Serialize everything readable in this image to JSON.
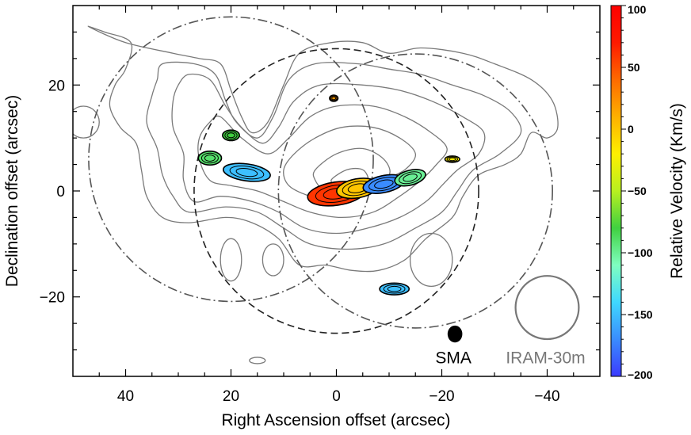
{
  "chart_data": {
    "type": "contour_map",
    "xlabel": "Right Ascension offset (arcsec)",
    "ylabel": "Declination offset (arcsec)",
    "xlim": [
      50,
      -50
    ],
    "ylim": [
      -35,
      35
    ],
    "x_ticks": [
      40,
      20,
      0,
      -20,
      -40
    ],
    "x_tick_labels": [
      "40",
      "20",
      "0",
      "−20",
      "−40"
    ],
    "y_ticks": [
      20,
      0,
      -20
    ],
    "y_tick_labels": [
      "20",
      "0",
      "−20"
    ],
    "colorbar": {
      "label": "Relative Velocity (Km/s)",
      "range": [
        -200,
        100
      ],
      "ticks": [
        100,
        50,
        0,
        -50,
        -100,
        -150,
        -200
      ],
      "tick_labels": [
        "100",
        "50",
        "0",
        "−50",
        "−100",
        "−150",
        "−200"
      ],
      "colormap": [
        "#3b3bff",
        "#3a8cff",
        "#3fd8ff",
        "#7fffc0",
        "#40d040",
        "#b8f020",
        "#fff000",
        "#ffb000",
        "#ff6a00",
        "#ff1a00",
        "#ff0000"
      ]
    },
    "pointings": [
      {
        "style": "dashdot",
        "center": [
          20,
          6
        ],
        "radius": 27
      },
      {
        "style": "dashed",
        "center": [
          0,
          0
        ],
        "radius": 27
      },
      {
        "style": "dashdot",
        "center": [
          -15,
          0
        ],
        "radius": 26
      }
    ],
    "smoothed_contours": [
      {
        "level": 1,
        "points": [
          [
            47,
            31
          ],
          [
            40,
            28
          ],
          [
            31,
            26
          ],
          [
            26,
            25
          ],
          [
            22,
            24
          ],
          [
            20,
            19
          ],
          [
            18,
            14
          ],
          [
            16,
            11
          ],
          [
            13,
            13
          ],
          [
            10,
            20
          ],
          [
            7,
            26
          ],
          [
            1,
            28
          ],
          [
            -5,
            28
          ],
          [
            -10,
            26
          ],
          [
            -16,
            27
          ],
          [
            -24,
            26
          ],
          [
            -30,
            24
          ],
          [
            -37,
            21
          ],
          [
            -41,
            17
          ],
          [
            -42,
            12
          ],
          [
            -40,
            10
          ],
          [
            -37,
            11
          ],
          [
            -35,
            7
          ],
          [
            -32,
            5
          ],
          [
            -27,
            3
          ],
          [
            -24,
            -1
          ],
          [
            -22,
            -5
          ],
          [
            -17,
            -9
          ],
          [
            -13,
            -13
          ],
          [
            -8,
            -15
          ],
          [
            -3,
            -15
          ],
          [
            2,
            -14
          ],
          [
            7,
            -14
          ],
          [
            11,
            -9
          ],
          [
            16,
            -6
          ],
          [
            21,
            -5
          ],
          [
            28,
            -6
          ],
          [
            33,
            -5
          ],
          [
            36,
            -1
          ],
          [
            37,
            4
          ],
          [
            38,
            9
          ],
          [
            41,
            12
          ],
          [
            43,
            16
          ],
          [
            42,
            20
          ],
          [
            40,
            23
          ],
          [
            39,
            28
          ],
          [
            44,
            30
          ]
        ]
      },
      {
        "level": 2,
        "points": [
          [
            33,
            24
          ],
          [
            27,
            24
          ],
          [
            23,
            22
          ],
          [
            21,
            17
          ],
          [
            19,
            13
          ],
          [
            15,
            10
          ],
          [
            12,
            14
          ],
          [
            9,
            21
          ],
          [
            4,
            24
          ],
          [
            -4,
            24
          ],
          [
            -10,
            23
          ],
          [
            -16,
            22
          ],
          [
            -22,
            20
          ],
          [
            -28,
            18
          ],
          [
            -33,
            15
          ],
          [
            -35,
            11
          ],
          [
            -31,
            7
          ],
          [
            -26,
            4
          ],
          [
            -23,
            0
          ],
          [
            -20,
            -4
          ],
          [
            -15,
            -7
          ],
          [
            -9,
            -10
          ],
          [
            -2,
            -11
          ],
          [
            5,
            -10
          ],
          [
            10,
            -7
          ],
          [
            15,
            -4
          ],
          [
            21,
            -3
          ],
          [
            28,
            -4
          ],
          [
            31,
            -1
          ],
          [
            33,
            3
          ],
          [
            34,
            8
          ],
          [
            36,
            13
          ],
          [
            35,
            18
          ],
          [
            34,
            21
          ]
        ]
      },
      {
        "level": 3,
        "points": [
          [
            28,
            22
          ],
          [
            24,
            21
          ],
          [
            21,
            16
          ],
          [
            18,
            12
          ],
          [
            14,
            9
          ],
          [
            11,
            12
          ],
          [
            8,
            17
          ],
          [
            3,
            20
          ],
          [
            -5,
            20
          ],
          [
            -12,
            19
          ],
          [
            -18,
            17
          ],
          [
            -24,
            14
          ],
          [
            -28,
            11
          ],
          [
            -27,
            7
          ],
          [
            -23,
            4
          ],
          [
            -20,
            1
          ],
          [
            -17,
            -2
          ],
          [
            -12,
            -5
          ],
          [
            -6,
            -7
          ],
          [
            0,
            -8
          ],
          [
            6,
            -7
          ],
          [
            11,
            -4
          ],
          [
            16,
            -2
          ],
          [
            22,
            -1
          ],
          [
            27,
            -2
          ],
          [
            29,
            2
          ],
          [
            29,
            7
          ],
          [
            31,
            12
          ],
          [
            31,
            17
          ],
          [
            30,
            20
          ]
        ]
      },
      {
        "level": 4,
        "points": [
          [
            22,
            14
          ],
          [
            18,
            10
          ],
          [
            13,
            7
          ],
          [
            9,
            10
          ],
          [
            5,
            14
          ],
          [
            0,
            16
          ],
          [
            -7,
            16
          ],
          [
            -13,
            14
          ],
          [
            -18,
            11
          ],
          [
            -21,
            8
          ],
          [
            -19,
            5
          ],
          [
            -16,
            2
          ],
          [
            -12,
            -1
          ],
          [
            -7,
            -4
          ],
          [
            -1,
            -5
          ],
          [
            5,
            -4
          ],
          [
            10,
            -2
          ],
          [
            15,
            0
          ],
          [
            20,
            1
          ],
          [
            24,
            2
          ],
          [
            26,
            6
          ],
          [
            26,
            10
          ],
          [
            24,
            13
          ]
        ]
      },
      {
        "level": 5,
        "points": [
          [
            8,
            7
          ],
          [
            4,
            10
          ],
          [
            -1,
            12
          ],
          [
            -7,
            12
          ],
          [
            -12,
            10
          ],
          [
            -15,
            7
          ],
          [
            -13,
            4
          ],
          [
            -9,
            2
          ],
          [
            -5,
            -1
          ],
          [
            0,
            -2
          ],
          [
            5,
            -1
          ],
          [
            9,
            1
          ],
          [
            10,
            4
          ]
        ]
      },
      {
        "level": 6,
        "points": [
          [
            4,
            4
          ],
          [
            0,
            7
          ],
          [
            -5,
            8
          ],
          [
            -9,
            6
          ],
          [
            -10,
            3
          ],
          [
            -6,
            1
          ],
          [
            -2,
            0
          ],
          [
            2,
            0
          ],
          [
            4,
            2
          ]
        ]
      },
      {
        "level": 7,
        "points": [
          [
            1,
            2
          ],
          [
            -2,
            4
          ],
          [
            -5,
            4
          ],
          [
            -6,
            2
          ],
          [
            -4,
            1
          ],
          [
            -1,
            1
          ]
        ]
      }
    ],
    "contour_islands": [
      {
        "center": [
          -18,
          -13
        ],
        "rx": 4,
        "ry": 5
      },
      {
        "center": [
          20,
          -13
        ],
        "rx": 2,
        "ry": 4
      },
      {
        "center": [
          12,
          -13
        ],
        "rx": 2,
        "ry": 3
      },
      {
        "center": [
          48,
          13
        ],
        "rx": 3,
        "ry": 3
      },
      {
        "center": [
          15,
          -32
        ],
        "rx": 1.5,
        "ry": 0.6
      }
    ],
    "emission_clumps": [
      {
        "center": [
          0,
          -0.5
        ],
        "rx": 5.5,
        "ry": 2.2,
        "angle": 8,
        "velocity": 60
      },
      {
        "center": [
          -4,
          0.5
        ],
        "rx": 4,
        "ry": 1.8,
        "angle": 10,
        "velocity": 0
      },
      {
        "center": [
          -9,
          1.3
        ],
        "rx": 4,
        "ry": 1.6,
        "angle": 12,
        "velocity": -170
      },
      {
        "center": [
          -14,
          2.5
        ],
        "rx": 3,
        "ry": 1.4,
        "angle": 15,
        "velocity": -100
      },
      {
        "center": [
          17,
          3.5
        ],
        "rx": 4.5,
        "ry": 1.6,
        "angle": -8,
        "velocity": -150
      },
      {
        "center": [
          24,
          6.2
        ],
        "rx": 2.2,
        "ry": 1.3,
        "angle": 0,
        "velocity": -90
      },
      {
        "center": [
          20,
          10.5
        ],
        "rx": 1.6,
        "ry": 1.0,
        "angle": 0,
        "velocity": -80
      },
      {
        "center": [
          0.5,
          17.5
        ],
        "rx": 0.8,
        "ry": 0.6,
        "angle": 0,
        "velocity": 20
      },
      {
        "center": [
          -22,
          6
        ],
        "rx": 1.4,
        "ry": 0.6,
        "angle": 0,
        "velocity": -20
      },
      {
        "center": [
          -11,
          -18.5
        ],
        "rx": 2.8,
        "ry": 1.1,
        "angle": 0,
        "velocity": -150
      }
    ],
    "beams": [
      {
        "name": "SMA",
        "label": "SMA",
        "center": [
          -22.5,
          -27
        ],
        "rx": 1.4,
        "ry": 1.6,
        "filled": true,
        "color": "#000000"
      },
      {
        "name": "IRAM-30m",
        "label": "IRAM-30m",
        "center": [
          -40,
          -22
        ],
        "radius": 6,
        "filled": false,
        "color": "#777777"
      }
    ]
  }
}
